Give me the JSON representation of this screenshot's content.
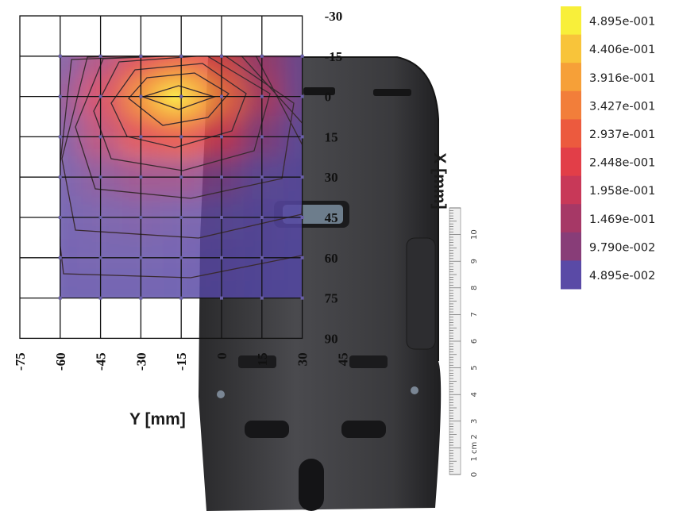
{
  "chart_data": {
    "type": "heatmap",
    "title": "",
    "xlabel": "Y [mm]",
    "ylabel": "X [mm]",
    "x_ticks": [
      -75,
      -60,
      -45,
      -30,
      -15,
      0,
      15,
      30,
      45
    ],
    "y_ticks": [
      -30,
      -15,
      0,
      15,
      30,
      45,
      60,
      75,
      90
    ],
    "x_grid": [
      -60,
      -45,
      -30,
      -15,
      0,
      15,
      30
    ],
    "y_grid": [
      -15,
      0,
      15,
      30,
      45,
      60,
      75
    ],
    "values": [
      [
        0.12,
        0.2,
        0.29,
        0.34,
        0.31,
        0.2,
        0.12
      ],
      [
        0.15,
        0.27,
        0.42,
        0.49,
        0.39,
        0.23,
        0.12
      ],
      [
        0.12,
        0.22,
        0.31,
        0.34,
        0.27,
        0.16,
        0.09
      ],
      [
        0.1,
        0.14,
        0.17,
        0.17,
        0.14,
        0.09,
        0.06
      ],
      [
        0.08,
        0.1,
        0.11,
        0.1,
        0.08,
        0.06,
        0.05
      ],
      [
        0.07,
        0.08,
        0.08,
        0.07,
        0.06,
        0.05,
        0.04
      ],
      [
        0.06,
        0.06,
        0.06,
        0.05,
        0.05,
        0.04,
        0.04
      ]
    ],
    "legend": {
      "labels": [
        "4.895e-001",
        "4.406e-001",
        "3.916e-001",
        "3.427e-001",
        "2.937e-001",
        "2.448e-001",
        "1.958e-001",
        "1.469e-001",
        "9.790e-002",
        "4.895e-002"
      ],
      "colors": [
        "#f8ef3a",
        "#f8c43a",
        "#f6a038",
        "#f27e3a",
        "#ec5a3e",
        "#e23e48",
        "#c83858",
        "#a63866",
        "#883d78",
        "#5a4aa6"
      ],
      "position": "right"
    },
    "grid": true,
    "contours": true
  },
  "ruler": {
    "labels": [
      "0",
      "1 cm 2",
      "3",
      "4",
      "5",
      "6",
      "7",
      "8",
      "9",
      "10"
    ]
  }
}
